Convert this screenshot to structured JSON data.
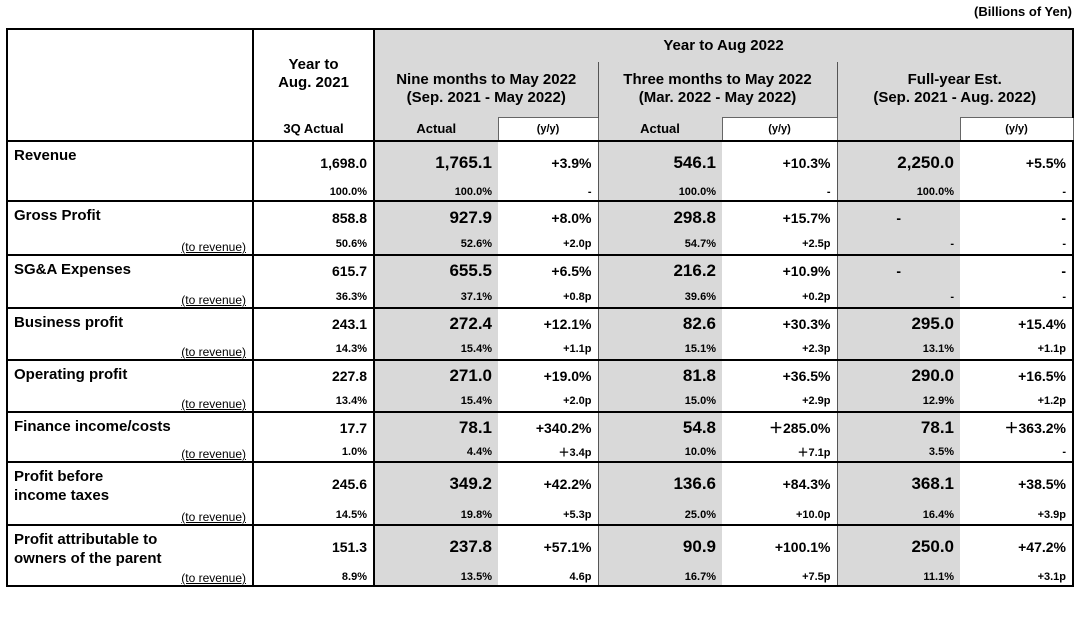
{
  "unit_label": "(Billions of Yen)",
  "header": {
    "prev_year_line1": "Year to",
    "prev_year_line2": "Aug. 2021",
    "prev_year_sub": "3Q Actual",
    "current_group": "Year to Aug 2022",
    "nine_months_line1": "Nine months to May 2022",
    "nine_months_line2": "(Sep. 2021 - May 2022)",
    "three_months_line1": "Three months to May 2022",
    "three_months_line2": "(Mar. 2022 - May 2022)",
    "full_year_line1": "Full-year Est.",
    "full_year_line2": "(Sep. 2021 - Aug. 2022)",
    "actual": "Actual",
    "yy": "(y/y)"
  },
  "rows": [
    {
      "label": "Revenue",
      "label2": "",
      "sub": "",
      "prev": "1,698.0",
      "prev_r": "100.0%",
      "nine": "1,765.1",
      "nine_yy": "+3.9%",
      "nine_r": "100.0%",
      "nine_yyr": "-",
      "three": "546.1",
      "three_yy": "+10.3%",
      "three_r": "100.0%",
      "three_yyr": "-",
      "fy": "2,250.0",
      "fy_yy": "+5.5%",
      "fy_r": "100.0%",
      "fy_yyr": "-"
    },
    {
      "label": "Gross Profit",
      "label2": "",
      "sub": "(to revenue)",
      "prev": "858.8",
      "prev_r": "50.6%",
      "nine": "927.9",
      "nine_yy": "+8.0%",
      "nine_r": "52.6%",
      "nine_yyr": "+2.0p",
      "three": "298.8",
      "three_yy": "+15.7%",
      "three_r": "54.7%",
      "three_yyr": "+2.5p",
      "fy": "-",
      "fy_yy": "-",
      "fy_r": "-",
      "fy_yyr": "-"
    },
    {
      "label": "SG&A Expenses",
      "label2": "",
      "sub": "(to revenue)",
      "prev": "615.7",
      "prev_r": "36.3%",
      "nine": "655.5",
      "nine_yy": "+6.5%",
      "nine_r": "37.1%",
      "nine_yyr": "+0.8p",
      "three": "216.2",
      "three_yy": "+10.9%",
      "three_r": "39.6%",
      "three_yyr": "+0.2p",
      "fy": "-",
      "fy_yy": "-",
      "fy_r": "-",
      "fy_yyr": "-"
    },
    {
      "label": "Business profit",
      "label2": "",
      "sub": "(to revenue)",
      "prev": "243.1",
      "prev_r": "14.3%",
      "nine": "272.4",
      "nine_yy": "+12.1%",
      "nine_r": "15.4%",
      "nine_yyr": "+1.1p",
      "three": "82.6",
      "three_yy": "+30.3%",
      "three_r": "15.1%",
      "three_yyr": "+2.3p",
      "fy": "295.0",
      "fy_yy": "+15.4%",
      "fy_r": "13.1%",
      "fy_yyr": "+1.1p"
    },
    {
      "label": "Operating profit",
      "label2": "",
      "sub": "(to revenue)",
      "prev": "227.8",
      "prev_r": "13.4%",
      "nine": "271.0",
      "nine_yy": "+19.0%",
      "nine_r": "15.4%",
      "nine_yyr": "+2.0p",
      "three": "81.8",
      "three_yy": "+36.5%",
      "three_r": "15.0%",
      "three_yyr": "+2.9p",
      "fy": "290.0",
      "fy_yy": "+16.5%",
      "fy_r": "12.9%",
      "fy_yyr": "+1.2p"
    },
    {
      "label": "Finance income/costs",
      "label2": "",
      "sub": "(to revenue)",
      "prev": "17.7",
      "prev_r": "1.0%",
      "nine": "78.1",
      "nine_yy": "+340.2%",
      "nine_r": "4.4%",
      "nine_yyr": "＋3.4p",
      "three": "54.8",
      "three_yy": "＋285.0%",
      "three_r": "10.0%",
      "three_yyr": "＋7.1p",
      "fy": "78.1",
      "fy_yy": "＋363.2%",
      "fy_r": "3.5%",
      "fy_yyr": "-"
    },
    {
      "label": "Profit before",
      "label2": "income taxes",
      "sub": "(to revenue)",
      "prev": "245.6",
      "prev_r": "14.5%",
      "nine": "349.2",
      "nine_yy": "+42.2%",
      "nine_r": "19.8%",
      "nine_yyr": "+5.3p",
      "three": "136.6",
      "three_yy": "+84.3%",
      "three_r": "25.0%",
      "three_yyr": "+10.0p",
      "fy": "368.1",
      "fy_yy": "+38.5%",
      "fy_r": "16.4%",
      "fy_yyr": "+3.9p"
    },
    {
      "label": "Profit attributable to",
      "label2": "owners of the parent",
      "sub": "(to revenue)",
      "prev": "151.3",
      "prev_r": "8.9%",
      "nine": "237.8",
      "nine_yy": "+57.1%",
      "nine_r": "13.5%",
      "nine_yyr": "4.6p",
      "three": "90.9",
      "three_yy": "+100.1%",
      "three_r": "16.7%",
      "three_yyr": "+7.5p",
      "fy": "250.0",
      "fy_yy": "+47.2%",
      "fy_r": "11.1%",
      "fy_yyr": "+3.1p"
    }
  ]
}
